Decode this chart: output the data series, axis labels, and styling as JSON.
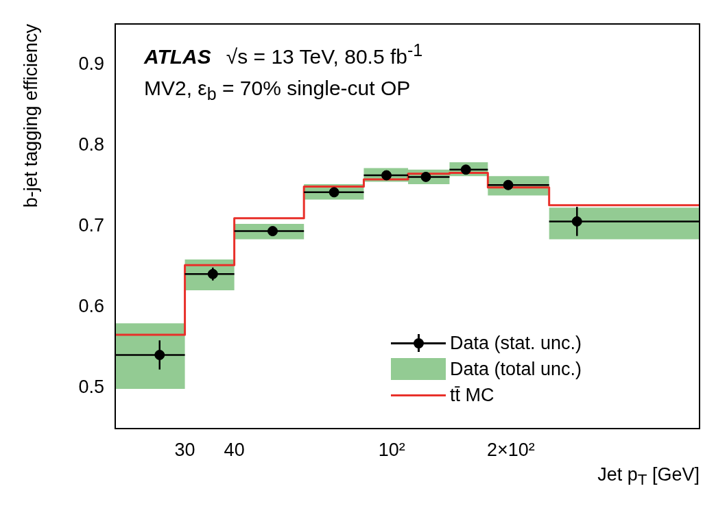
{
  "chart_data": {
    "type": "scatter",
    "xlabel": "Jet p$_{T}$ [GeV]",
    "ylabel": "b-jet tagging efficiency",
    "annotations": [
      "ATLAS",
      "√s = 13 TeV, 80.5 fb$^{-1}$",
      "MV2, ε$_{b}$ = 70% single-cut OP"
    ],
    "log": "x",
    "xlim": [
      20,
      600
    ],
    "xticks": [
      30,
      40,
      {
        "value": 100,
        "label": "10²"
      },
      {
        "value": 200,
        "label": "2×10²"
      }
    ],
    "ylim": [
      0.45,
      0.95
    ],
    "yticks": [
      0.5,
      0.6,
      0.7,
      0.8,
      0.9
    ],
    "legend": "bottom right",
    "series": [
      {
        "name": "Data (stat. unc.)",
        "color": "#000000",
        "marker": "circle",
        "x": [
          25.9,
          35.3,
          50,
          71.5,
          97,
          122,
          154,
          197,
          294
        ],
        "values": [
          0.541,
          0.641,
          0.694,
          0.742,
          0.763,
          0.761,
          0.77,
          0.751,
          0.706
        ],
        "errors": [
          0.018,
          0.008,
          0.004,
          0.004,
          0.004,
          0.004,
          0.004,
          0.004,
          0.018
        ],
        "xerrors": [
          [
            20,
            30
          ],
          [
            30,
            40
          ],
          [
            40,
            60
          ],
          [
            60,
            85
          ],
          [
            85,
            110
          ],
          [
            110,
            140
          ],
          [
            140,
            175
          ],
          [
            175,
            250
          ],
          [
            250,
            600
          ]
        ]
      },
      {
        "type": "step",
        "name": "Data (total unc.)",
        "color": "#93cb93",
        "x": [
          20,
          30,
          40,
          60,
          85,
          110,
          140,
          175,
          250,
          600
        ],
        "values": [
          null,
          null,
          null,
          null,
          null,
          null,
          null,
          null,
          null,
          null
        ],
        "lower": [
          0.499,
          0.621,
          0.684,
          0.733,
          0.755,
          0.752,
          0.762,
          0.738,
          0.684,
          0.684
        ],
        "upper": [
          0.58,
          0.659,
          0.703,
          0.752,
          0.772,
          0.77,
          0.779,
          0.762,
          0.723,
          0.723
        ]
      },
      {
        "type": "step",
        "name": "tt̄ MC",
        "color": "#e8302a",
        "x": [
          20,
          30,
          40,
          60,
          85,
          110,
          140,
          175,
          250,
          600
        ],
        "values": [
          0.566,
          0.652,
          0.71,
          0.749,
          0.758,
          0.765,
          0.766,
          0.748,
          0.726,
          0.726
        ]
      }
    ]
  }
}
